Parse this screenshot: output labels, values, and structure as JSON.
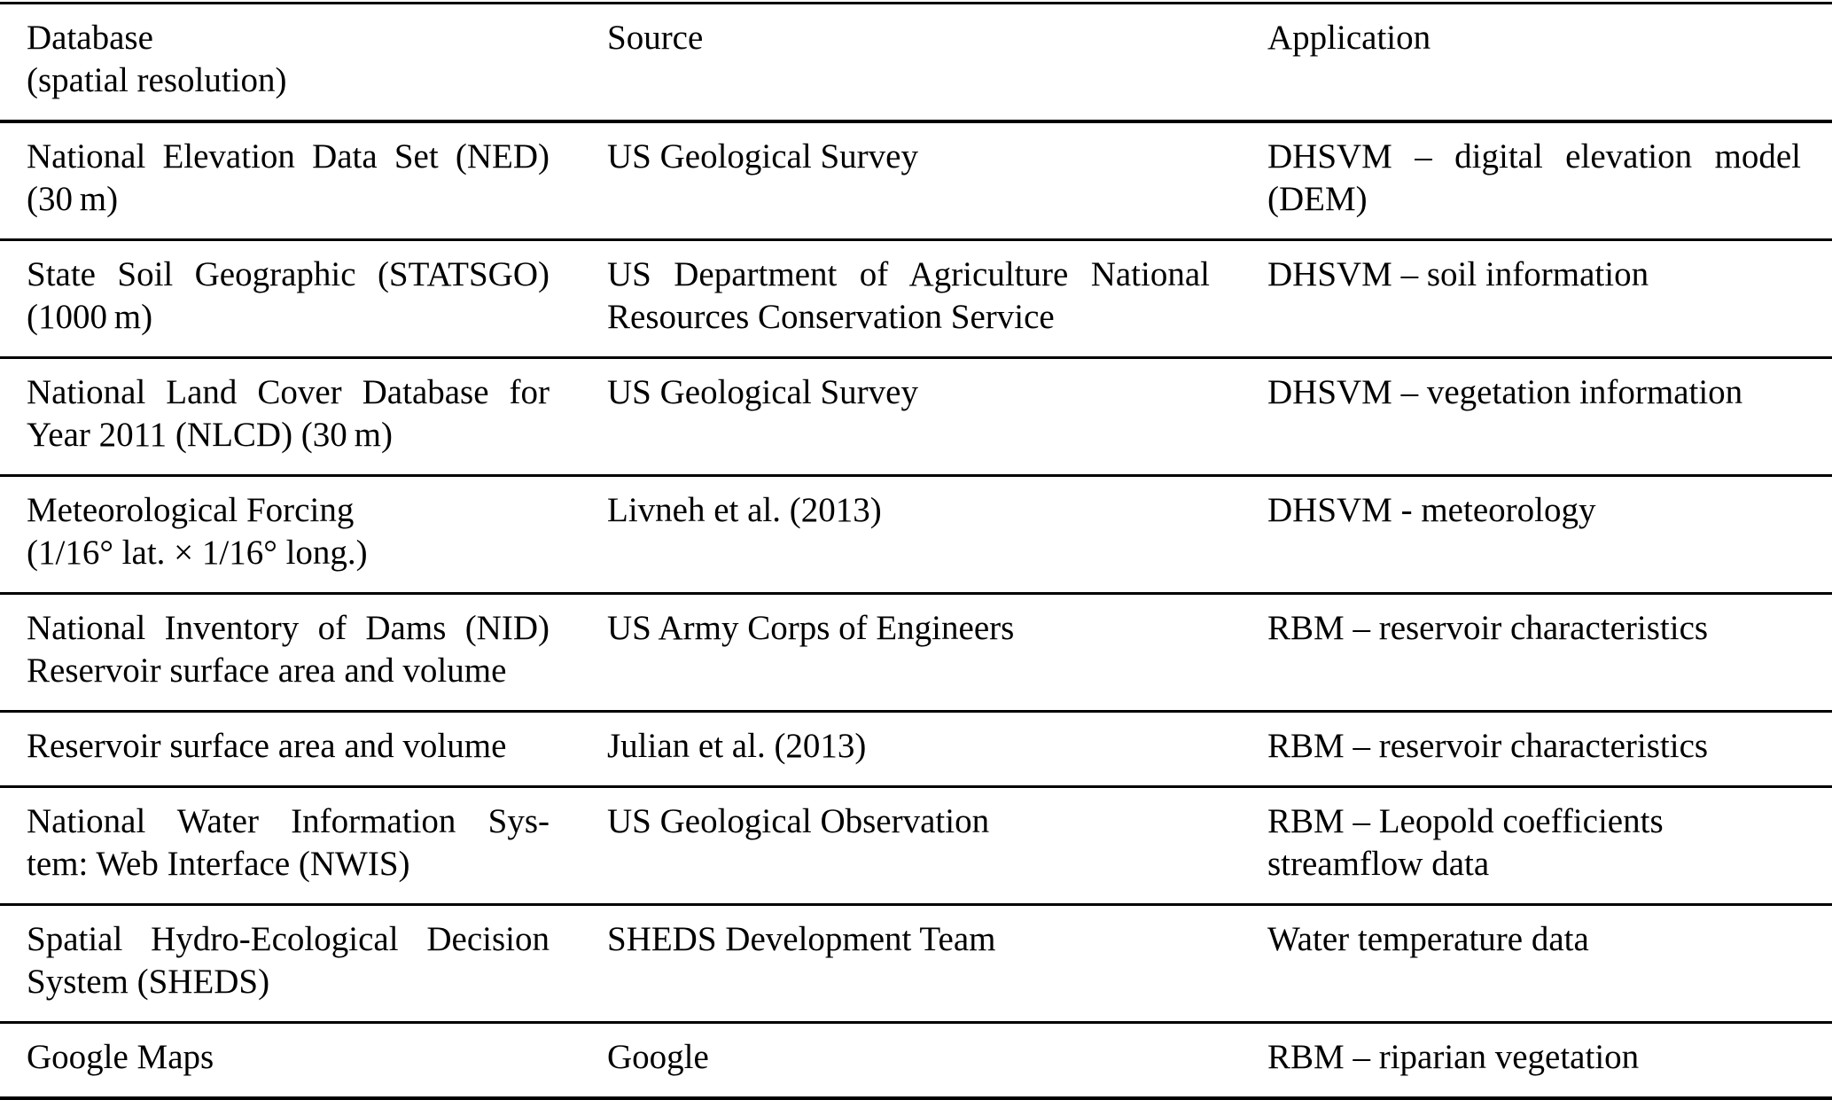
{
  "table": {
    "header": {
      "database": [
        "Database",
        "(spatial resolution)"
      ],
      "source": [
        "Source"
      ],
      "application": [
        "Application"
      ]
    },
    "rows": [
      {
        "database": [
          "National Elevation Data Set (NED)",
          "(30 m)"
        ],
        "source": [
          "US Geological Survey"
        ],
        "application": [
          "DHSVM – digital elevation model",
          "(DEM)"
        ]
      },
      {
        "database": [
          "State Soil Geographic (STATSGO)",
          "(1000 m)"
        ],
        "source": [
          "US Department of Agriculture National",
          "Resources Conservation Service"
        ],
        "application": [
          "DHSVM – soil information"
        ]
      },
      {
        "database": [
          "National Land Cover Database for",
          "Year 2011 (NLCD) (30 m)"
        ],
        "source": [
          "US Geological Survey"
        ],
        "application": [
          "DHSVM – vegetation information"
        ]
      },
      {
        "database": [
          "Meteorological Forcing",
          "(1/16° lat. × 1/16° long.)"
        ],
        "source": [
          "Livneh et al. (2013)"
        ],
        "application": [
          "DHSVM - meteorology"
        ]
      },
      {
        "database": [
          "National Inventory of Dams (NID)",
          "Reservoir surface area and volume"
        ],
        "source": [
          "US Army Corps of Engineers"
        ],
        "application": [
          "RBM – reservoir characteristics"
        ]
      },
      {
        "database": [
          "Reservoir surface area and volume"
        ],
        "source": [
          "Julian et al. (2013)"
        ],
        "application": [
          "RBM – reservoir characteristics"
        ]
      },
      {
        "database": [
          "National Water Information Sys-",
          "tem: Web Interface (NWIS)"
        ],
        "source": [
          "US Geological Observation"
        ],
        "application": [
          "RBM – Leopold coefficients",
          "streamflow data"
        ]
      },
      {
        "database": [
          "Spatial Hydro-Ecological Decision",
          "System (SHEDS)"
        ],
        "source": [
          "SHEDS Development Team"
        ],
        "application": [
          "Water temperature data"
        ]
      },
      {
        "database": [
          "Google Maps"
        ],
        "source": [
          "Google"
        ],
        "application": [
          "RBM – riparian vegetation"
        ]
      }
    ]
  }
}
